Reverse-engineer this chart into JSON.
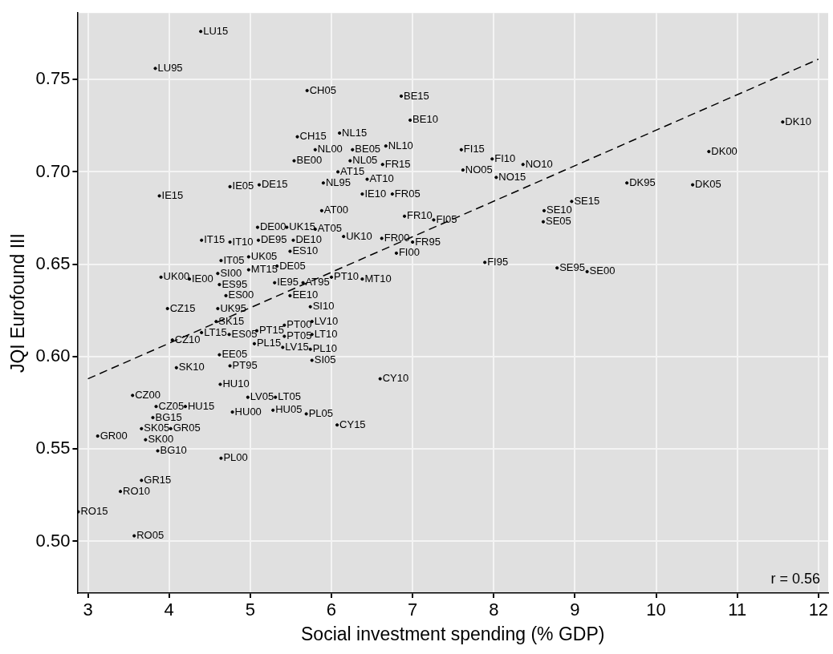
{
  "chart_data": {
    "type": "scatter",
    "xlabel": "Social investment spending (% GDP)",
    "ylabel": "JQI Eurofound III",
    "xlim": [
      2.87,
      12.12
    ],
    "ylim": [
      0.472,
      0.786
    ],
    "xticks": [
      3,
      4,
      5,
      6,
      7,
      8,
      9,
      10,
      11,
      12
    ],
    "yticks": [
      {
        "value": 0.5,
        "label": "0.50"
      },
      {
        "value": 0.55,
        "label": "0.55"
      },
      {
        "value": 0.6,
        "label": "0.60"
      },
      {
        "value": 0.65,
        "label": "0.65"
      },
      {
        "value": 0.7,
        "label": "0.70"
      },
      {
        "value": 0.75,
        "label": "0.75"
      }
    ],
    "grid": true,
    "legend": false,
    "annotations": [
      "r = 0.56"
    ],
    "series": [
      {
        "color": "#000000",
        "marker": "circle",
        "x": [
          4.39,
          3.83,
          5.7,
          6.86,
          6.97,
          5.58,
          6.1,
          5.8,
          6.26,
          6.67,
          5.54,
          6.23,
          6.63,
          6.08,
          5.9,
          6.44,
          6.38,
          6.75,
          3.88,
          4.75,
          5.11,
          5.88,
          6.9,
          7.26,
          5.09,
          5.45,
          5.8,
          6.15,
          4.4,
          4.75,
          5.1,
          5.53,
          6.62,
          6.8,
          7.0,
          5.49,
          4.64,
          4.98,
          4.98,
          5.33,
          3.9,
          4.6,
          4.25,
          4.62,
          4.7,
          5.3,
          5.65,
          6.0,
          6.38,
          5.49,
          5.74,
          3.98,
          4.6,
          4.58,
          4.4,
          4.74,
          5.08,
          5.76,
          5.42,
          5.42,
          4.04,
          5.05,
          5.76,
          5.4,
          5.74,
          5.76,
          4.62,
          4.75,
          4.09,
          4.63,
          6.6,
          3.55,
          4.97,
          5.31,
          4.2,
          4.78,
          5.28,
          5.69,
          6.07,
          3.84,
          3.8,
          3.66,
          4.02,
          3.12,
          3.71,
          3.86,
          4.64,
          3.66,
          3.4,
          2.88,
          3.57,
          7.6,
          7.62,
          7.98,
          8.36,
          8.03,
          7.89,
          8.96,
          8.62,
          8.61,
          8.78,
          9.15,
          9.64,
          10.45,
          10.65,
          11.56
        ],
        "values": [
          0.776,
          0.756,
          0.744,
          0.741,
          0.728,
          0.719,
          0.721,
          0.712,
          0.712,
          0.714,
          0.706,
          0.706,
          0.704,
          0.7,
          0.694,
          0.696,
          0.688,
          0.688,
          0.687,
          0.692,
          0.693,
          0.679,
          0.676,
          0.674,
          0.67,
          0.67,
          0.669,
          0.665,
          0.663,
          0.662,
          0.663,
          0.663,
          0.664,
          0.656,
          0.662,
          0.657,
          0.652,
          0.654,
          0.647,
          0.649,
          0.643,
          0.645,
          0.642,
          0.639,
          0.633,
          0.64,
          0.64,
          0.643,
          0.642,
          0.633,
          0.627,
          0.626,
          0.626,
          0.619,
          0.613,
          0.612,
          0.614,
          0.619,
          0.617,
          0.611,
          0.609,
          0.607,
          0.612,
          0.605,
          0.604,
          0.598,
          0.601,
          0.595,
          0.594,
          0.585,
          0.588,
          0.579,
          0.578,
          0.578,
          0.573,
          0.57,
          0.571,
          0.569,
          0.563,
          0.573,
          0.567,
          0.561,
          0.561,
          0.557,
          0.555,
          0.549,
          0.545,
          0.533,
          0.527,
          0.516,
          0.503,
          0.712,
          0.701,
          0.707,
          0.704,
          0.697,
          0.651,
          0.684,
          0.679,
          0.673,
          0.648,
          0.646,
          0.694,
          0.693,
          0.711,
          0.727
        ],
        "value_labels": [
          "LU15",
          "LU95",
          "CH05",
          "BE15",
          "BE10",
          "CH15",
          "NL15",
          "NL00",
          "BE05",
          "NL10",
          "BE00",
          "NL05",
          "FR15",
          "AT15",
          "NL95",
          "AT10",
          "IE10",
          "FR05",
          "IE15",
          "IE05",
          "DE15",
          "AT00",
          "FR10",
          "FI05",
          "DE00",
          "UK15",
          "AT05",
          "UK10",
          "IT15",
          "IT10",
          "DE95",
          "DE10",
          "FR00",
          "FI00",
          "FR95",
          "ES10",
          "IT05",
          "UK05",
          "MT15",
          "DE05",
          "UK00",
          "SI00",
          "IE00",
          "ES95",
          "ES00",
          "IE95",
          "AT95",
          "PT10",
          "MT10",
          "EE10",
          "SI10",
          "CZ15",
          "UK95",
          "SK15",
          "LT15",
          "ES05",
          "PT15",
          "LV10",
          "PT00",
          "PT05",
          "CZ10",
          "PL15",
          "LT10",
          "LV15",
          "PL10",
          "SI05",
          "EE05",
          "PT95",
          "SK10",
          "HU10",
          "CY10",
          "CZ00",
          "LV05",
          "LT05",
          "HU15",
          "HU00",
          "HU05",
          "PL05",
          "CY15",
          "CZ05",
          "BG15",
          "SK05",
          "GR05",
          "GR00",
          "SK00",
          "BG10",
          "PL00",
          "GR15",
          "RO10",
          "RO15",
          "RO05",
          "FI15",
          "NO05",
          "FI10",
          "NO10",
          "NO15",
          "FI95",
          "SE15",
          "SE10",
          "SE05",
          "SE95",
          "SE00",
          "DK95",
          "DK05",
          "DK00",
          "DK10"
        ]
      },
      {
        "type": "line",
        "color": "#000000",
        "marker": "none",
        "line_style": "dashed",
        "x": [
          3,
          12
        ],
        "values": [
          0.588,
          0.761
        ]
      }
    ]
  }
}
